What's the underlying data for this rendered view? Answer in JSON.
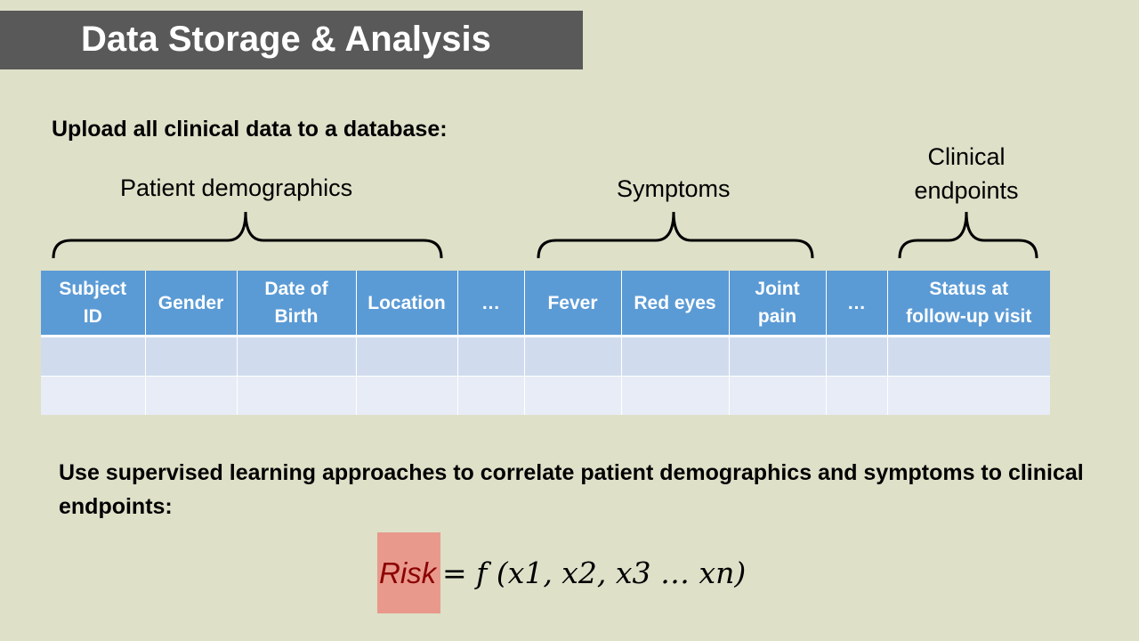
{
  "slide": {
    "title": "Data Storage & Analysis",
    "upload_heading": "Upload all clinical data to a database:",
    "learning_heading": "Use supervised learning approaches to correlate patient demographics and symptoms to clinical endpoints:"
  },
  "groups": {
    "demographics": "Patient demographics",
    "symptoms": "Symptoms",
    "endpoints_line1": "Clinical",
    "endpoints_line2": "endpoints"
  },
  "table": {
    "columns": [
      {
        "line1": "Subject",
        "line2": "ID"
      },
      {
        "line1": "Gender",
        "line2": ""
      },
      {
        "line1": "Date of",
        "line2": "Birth"
      },
      {
        "line1": "Location",
        "line2": ""
      },
      {
        "line1": "…",
        "line2": ""
      },
      {
        "line1": "Fever",
        "line2": ""
      },
      {
        "line1": "Red eyes",
        "line2": ""
      },
      {
        "line1": "Joint",
        "line2": "pain"
      },
      {
        "line1": "…",
        "line2": ""
      },
      {
        "line1": "Status at",
        "line2": "follow-up visit"
      }
    ]
  },
  "formula": {
    "risk": "Risk",
    "rhs": "= f (x1, x2, x3 … xn)"
  },
  "colors": {
    "background": "#dee0c8",
    "title_bar": "#595959",
    "header": "#5b9bd5",
    "row_a": "#d0dcee",
    "row_b": "#e8ecf6",
    "risk_highlight": "#e8998c"
  }
}
